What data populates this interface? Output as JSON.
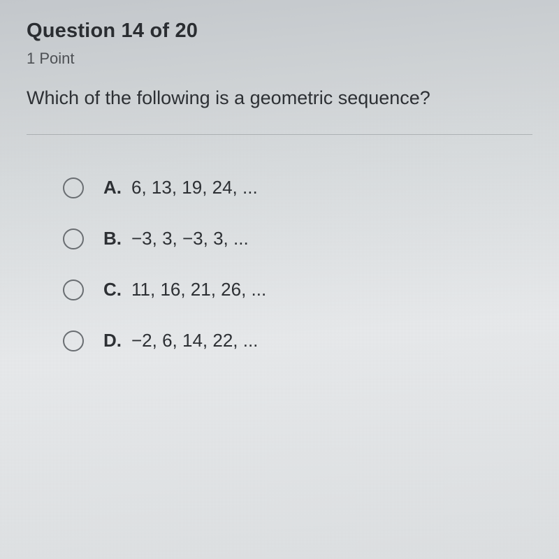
{
  "header": {
    "title": "Question 14 of 20",
    "points": "1 Point"
  },
  "prompt": "Which of the following is a geometric sequence?",
  "options": [
    {
      "label": "A.",
      "text": "6, 13, 19, 24, ..."
    },
    {
      "label": "B.",
      "text": "−3, 3, −3, 3, ..."
    },
    {
      "label": "C.",
      "text": "11, 16, 21, 26, ..."
    },
    {
      "label": "D.",
      "text": "−2, 6, 14, 22, ..."
    }
  ],
  "styling": {
    "background_gradient": [
      "#c5c9cd",
      "#d8dcde",
      "#e8eaec",
      "#dde0e2"
    ],
    "header_fontsize": 29,
    "header_color": "#2a2d31",
    "points_fontsize": 22,
    "points_color": "#4d5054",
    "prompt_fontsize": 27,
    "prompt_color": "#2d3034",
    "divider_color": "rgba(100,105,110,0.35)",
    "radio_size": 30,
    "radio_border_color": "#6a6e72",
    "radio_border_width": 2,
    "option_fontsize": 26,
    "option_color": "#2d3034",
    "option_row_spacing": 42
  }
}
